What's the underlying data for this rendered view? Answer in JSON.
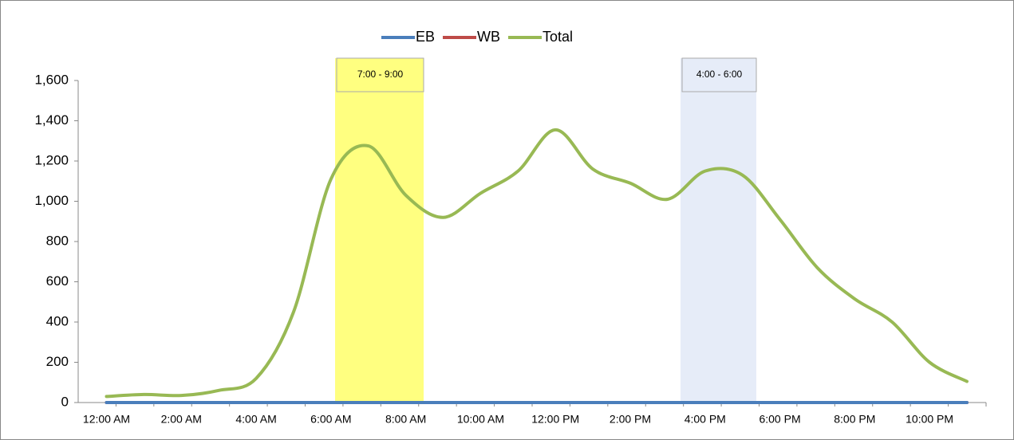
{
  "chart_data": {
    "type": "line",
    "categories": [
      "12:00 AM",
      null,
      "2:00 AM",
      null,
      "4:00 AM",
      null,
      "6:00 AM",
      null,
      "8:00 AM",
      null,
      "10:00 AM",
      null,
      "12:00 PM",
      null,
      "2:00 PM",
      null,
      "4:00 PM",
      null,
      "6:00 PM",
      null,
      "8:00 PM",
      null,
      "10:00 PM",
      null
    ],
    "series": [
      {
        "name": "EB",
        "color": "#4a7ebb",
        "values": [
          0,
          0,
          0,
          0,
          0,
          0,
          0,
          0,
          0,
          0,
          0,
          0,
          0,
          0,
          0,
          0,
          0,
          0,
          0,
          0,
          0,
          0,
          0,
          0
        ]
      },
      {
        "name": "WB",
        "color": "#be4b48",
        "values": [
          0,
          0,
          0,
          0,
          0,
          0,
          0,
          0,
          0,
          0,
          0,
          0,
          0,
          0,
          0,
          0,
          0,
          0,
          0,
          0,
          0,
          0,
          0,
          0
        ]
      },
      {
        "name": "Total",
        "color": "#98b954",
        "values": [
          30,
          40,
          35,
          60,
          120,
          450,
          1110,
          1275,
          1030,
          920,
          1040,
          1150,
          1355,
          1160,
          1090,
          1010,
          1150,
          1130,
          910,
          670,
          515,
          400,
          200,
          105
        ]
      }
    ],
    "ylim": [
      0,
      1600
    ],
    "yticks": [
      0,
      200,
      400,
      600,
      800,
      {
        "value": 1000,
        "label": "1,000"
      },
      {
        "value": 1200,
        "label": "1,200"
      },
      {
        "value": 1400,
        "label": "1,400"
      },
      {
        "value": 1600,
        "label": "1,600"
      }
    ],
    "annotations": [
      {
        "text": "7:00 - 9:00",
        "color": "#ffff80"
      },
      {
        "text": "4:00 - 6:00",
        "color": "#e6ecf8"
      }
    ],
    "legend": "top"
  }
}
